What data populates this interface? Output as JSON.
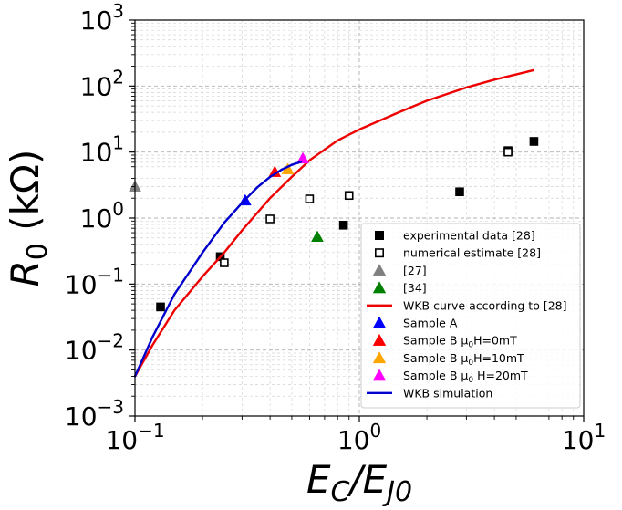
{
  "chart_data": {
    "type": "scatter",
    "x_scale": "log",
    "y_scale": "log",
    "xlim": [
      0.1,
      10
    ],
    "ylim": [
      0.001,
      1000
    ],
    "grid": true,
    "xlabel": "E_C/E_J0",
    "ylabel": "R_0 (kΩ)",
    "x_ticks": [
      {
        "base": "10",
        "exp": "−1"
      },
      {
        "base": "10",
        "exp": "0"
      },
      {
        "base": "10",
        "exp": "1"
      }
    ],
    "y_ticks": [
      {
        "base": "10",
        "exp": "−3"
      },
      {
        "base": "10",
        "exp": "−2"
      },
      {
        "base": "10",
        "exp": "−1"
      },
      {
        "base": "10",
        "exp": "0"
      },
      {
        "base": "10",
        "exp": "1"
      },
      {
        "base": "10",
        "exp": "2"
      },
      {
        "base": "10",
        "exp": "3"
      }
    ],
    "legend_position": "lower-right",
    "series": [
      {
        "name": "experimental data [28]",
        "kind": "scatter",
        "marker": "square",
        "filled": true,
        "color": "#000000",
        "points": [
          [
            0.13,
            0.045
          ],
          [
            0.24,
            0.26
          ],
          [
            0.85,
            0.78
          ],
          [
            2.8,
            2.5
          ],
          [
            4.6,
            10.5
          ],
          [
            6.0,
            14.5
          ]
        ]
      },
      {
        "name": "numerical estimate [28]",
        "kind": "scatter",
        "marker": "square",
        "filled": false,
        "color": "#000000",
        "points": [
          [
            0.25,
            0.21
          ],
          [
            0.4,
            0.97
          ],
          [
            0.6,
            1.95
          ],
          [
            0.9,
            2.2
          ],
          [
            4.6,
            10.0
          ]
        ]
      },
      {
        "name": "[27]",
        "kind": "scatter",
        "marker": "triangle",
        "filled": true,
        "color": "#808080",
        "points": [
          [
            0.1,
            3.0
          ]
        ]
      },
      {
        "name": "[34]",
        "kind": "scatter",
        "marker": "triangle",
        "filled": true,
        "color": "#008000",
        "points": [
          [
            0.65,
            0.52
          ]
        ]
      },
      {
        "name": "WKB curve according to [28]",
        "kind": "line",
        "color": "#ee0000",
        "points": [
          [
            0.1,
            0.004
          ],
          [
            0.12,
            0.012
          ],
          [
            0.15,
            0.04
          ],
          [
            0.2,
            0.13
          ],
          [
            0.25,
            0.3
          ],
          [
            0.3,
            0.65
          ],
          [
            0.4,
            2.0
          ],
          [
            0.5,
            4.2
          ],
          [
            0.6,
            7.5
          ],
          [
            0.8,
            15
          ],
          [
            1.0,
            22
          ],
          [
            1.5,
            40
          ],
          [
            2.0,
            60
          ],
          [
            3.0,
            95
          ],
          [
            4.0,
            125
          ],
          [
            5.0,
            150
          ],
          [
            6.0,
            175
          ]
        ]
      },
      {
        "name": "Sample A",
        "kind": "scatter",
        "marker": "triangle",
        "filled": true,
        "color": "#0000ff",
        "points": [
          [
            0.31,
            1.85
          ]
        ]
      },
      {
        "name": "Sample B μ₀H=0mT",
        "kind": "scatter",
        "marker": "triangle",
        "filled": true,
        "color": "#ff0000",
        "points": [
          [
            0.42,
            5.0
          ]
        ]
      },
      {
        "name": "Sample B μ₀H=10mT",
        "kind": "scatter",
        "marker": "triangle",
        "filled": true,
        "color": "#ffa500",
        "points": [
          [
            0.48,
            5.5
          ]
        ]
      },
      {
        "name": "Sample B μ₀ H=20mT",
        "kind": "scatter",
        "marker": "triangle",
        "filled": true,
        "color": "#ff00ff",
        "points": [
          [
            0.56,
            8.0
          ]
        ]
      },
      {
        "name": "WKB simulation",
        "kind": "line",
        "color": "#0000cc",
        "points": [
          [
            0.1,
            0.004
          ],
          [
            0.12,
            0.016
          ],
          [
            0.15,
            0.07
          ],
          [
            0.2,
            0.3
          ],
          [
            0.25,
            0.85
          ],
          [
            0.3,
            1.7
          ],
          [
            0.35,
            2.9
          ],
          [
            0.4,
            4.2
          ],
          [
            0.45,
            5.4
          ],
          [
            0.5,
            6.4
          ],
          [
            0.55,
            7.1
          ]
        ]
      }
    ]
  }
}
